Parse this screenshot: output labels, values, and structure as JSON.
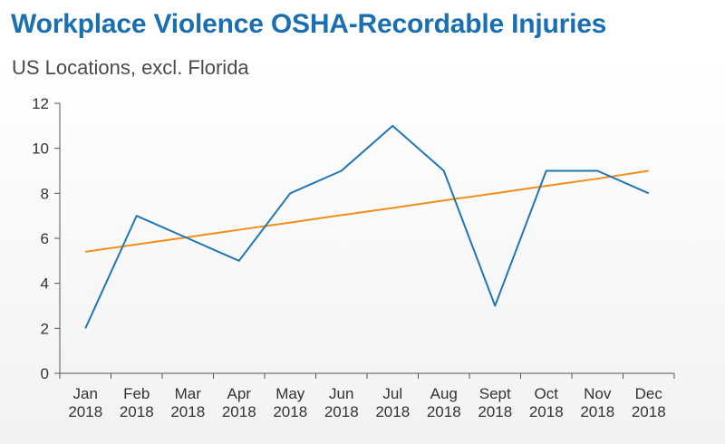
{
  "title": "Workplace Violence OSHA-Recordable Injuries",
  "subtitle": "US Locations, excl. Florida",
  "colors": {
    "title": "#1a6fb3",
    "series": "#1f77b4",
    "trend": "#f28e1c",
    "axis": "#555555"
  },
  "chart_data": {
    "type": "line",
    "title": "Workplace Violence OSHA-Recordable Injuries",
    "subtitle": "US Locations, excl. Florida",
    "xlabel": "",
    "ylabel": "",
    "categories": [
      [
        "Jan",
        "2018"
      ],
      [
        "Feb",
        "2018"
      ],
      [
        "Mar",
        "2018"
      ],
      [
        "Apr",
        "2018"
      ],
      [
        "May",
        "2018"
      ],
      [
        "Jun",
        "2018"
      ],
      [
        "Jul",
        "2018"
      ],
      [
        "Aug",
        "2018"
      ],
      [
        "Sept",
        "2018"
      ],
      [
        "Oct",
        "2018"
      ],
      [
        "Nov",
        "2018"
      ],
      [
        "Dec",
        "2018"
      ]
    ],
    "series": [
      {
        "values": [
          2,
          7,
          6,
          5,
          8,
          9,
          11,
          9,
          3,
          9,
          9,
          8
        ],
        "color": "#1f77b4"
      },
      {
        "values": [
          5.4,
          5.73,
          6.05,
          6.38,
          6.7,
          7.03,
          7.35,
          7.68,
          8.0,
          8.33,
          8.65,
          9.0
        ],
        "color": "#f28e1c",
        "kind": "linear trendline"
      }
    ],
    "ylim": [
      0,
      12
    ],
    "yticks": [
      0,
      2,
      4,
      6,
      8,
      10,
      12
    ],
    "grid": false,
    "legend": "none"
  }
}
